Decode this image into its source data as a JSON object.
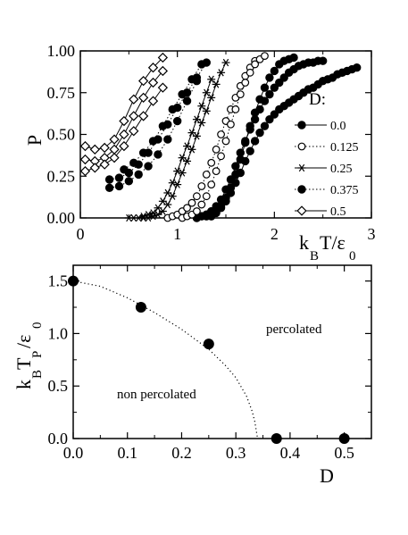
{
  "chart_data": [
    {
      "type": "line",
      "ylabel": "P",
      "xlabel": {
        "k": "k",
        "B": "B",
        "T": "T/ε",
        "zero": "0"
      },
      "xlim": [
        0,
        3
      ],
      "ylim": [
        0,
        1
      ],
      "x_ticks": [
        0,
        1,
        2,
        3
      ],
      "x_tick_labels": [
        "0",
        "1",
        "2",
        "3"
      ],
      "y_ticks": [
        0,
        0.25,
        0.5,
        0.75,
        1.0
      ],
      "y_tick_labels": [
        "0.00",
        "0.25",
        "0.50",
        "0.75",
        "1.00"
      ],
      "grid": false,
      "legend_title": "D:",
      "legend_position": "right",
      "series": [
        {
          "name": "0.0",
          "marker": "filled-circle",
          "line": "solid",
          "color": "#000000",
          "x": [
            1.3,
            1.35,
            1.4,
            1.45,
            1.5,
            1.55,
            1.6,
            1.65,
            1.7,
            1.75,
            1.8,
            1.85,
            1.9,
            1.95,
            2.0,
            2.05,
            2.1,
            2.15,
            2.2,
            2.25,
            2.3,
            2.35,
            2.4,
            2.45,
            2.5,
            2.55,
            2.6,
            2.65,
            2.7,
            2.75,
            2.8,
            2.85
          ],
          "y": [
            0.01,
            0.02,
            0.04,
            0.06,
            0.1,
            0.15,
            0.21,
            0.27,
            0.34,
            0.4,
            0.46,
            0.51,
            0.55,
            0.59,
            0.62,
            0.65,
            0.67,
            0.69,
            0.71,
            0.73,
            0.75,
            0.77,
            0.78,
            0.8,
            0.82,
            0.83,
            0.84,
            0.86,
            0.87,
            0.88,
            0.89,
            0.9
          ]
        },
        {
          "name": "0.0",
          "marker": "filled-circle",
          "line": "solid",
          "color": "#000000",
          "x": [
            1.2,
            1.25,
            1.3,
            1.35,
            1.4,
            1.45,
            1.5,
            1.55,
            1.6,
            1.65,
            1.7,
            1.75,
            1.8,
            1.85,
            1.9,
            1.95,
            2.0,
            2.05,
            2.1,
            2.15,
            2.2,
            2.25,
            2.3,
            2.35,
            2.4,
            2.45,
            2.5
          ],
          "y": [
            0.0,
            0.01,
            0.02,
            0.04,
            0.07,
            0.11,
            0.17,
            0.23,
            0.31,
            0.39,
            0.46,
            0.53,
            0.59,
            0.65,
            0.7,
            0.74,
            0.78,
            0.81,
            0.84,
            0.87,
            0.89,
            0.91,
            0.92,
            0.93,
            0.93,
            0.94,
            0.94
          ]
        },
        {
          "name": "0.0",
          "marker": "filled-circle",
          "line": "solid",
          "color": "#000000",
          "x": [
            1.35,
            1.4,
            1.45,
            1.5,
            1.55,
            1.6,
            1.65,
            1.7,
            1.75,
            1.8,
            1.85,
            1.9,
            1.95,
            2.0,
            2.05,
            2.1,
            2.15,
            2.2
          ],
          "y": [
            0.01,
            0.03,
            0.07,
            0.12,
            0.18,
            0.26,
            0.35,
            0.45,
            0.55,
            0.63,
            0.71,
            0.78,
            0.84,
            0.88,
            0.92,
            0.94,
            0.95,
            0.96
          ]
        },
        {
          "name": "0.125",
          "marker": "open-circle",
          "line": "dotted",
          "color": "#000000",
          "x": [
            0.9,
            0.95,
            1.0,
            1.05,
            1.1,
            1.15,
            1.2,
            1.25,
            1.3,
            1.35,
            1.4,
            1.45,
            1.5,
            1.55,
            1.6,
            1.65,
            1.7,
            1.75,
            1.8
          ],
          "y": [
            0.0,
            0.01,
            0.02,
            0.04,
            0.06,
            0.09,
            0.13,
            0.19,
            0.26,
            0.33,
            0.41,
            0.5,
            0.58,
            0.65,
            0.72,
            0.79,
            0.85,
            0.9,
            0.94
          ]
        },
        {
          "name": "0.125",
          "marker": "open-circle",
          "line": "dotted",
          "color": "#000000",
          "x": [
            1.05,
            1.1,
            1.15,
            1.2,
            1.25,
            1.3,
            1.35,
            1.4,
            1.45,
            1.5,
            1.55,
            1.6,
            1.65,
            1.7,
            1.75,
            1.8,
            1.85,
            1.9
          ],
          "y": [
            0.0,
            0.01,
            0.02,
            0.04,
            0.08,
            0.13,
            0.2,
            0.28,
            0.37,
            0.46,
            0.56,
            0.65,
            0.74,
            0.81,
            0.87,
            0.92,
            0.95,
            0.97
          ]
        },
        {
          "name": "0.25",
          "marker": "asterisk",
          "line": "solid",
          "color": "#000000",
          "x": [
            0.65,
            0.7,
            0.75,
            0.8,
            0.85,
            0.9,
            0.95,
            1.0,
            1.05,
            1.1,
            1.15,
            1.2,
            1.25,
            1.3,
            1.35,
            1.4,
            1.45,
            1.5
          ],
          "y": [
            0.0,
            0.0,
            0.01,
            0.02,
            0.04,
            0.08,
            0.13,
            0.2,
            0.27,
            0.34,
            0.41,
            0.49,
            0.57,
            0.64,
            0.72,
            0.8,
            0.87,
            0.93
          ]
        },
        {
          "name": "0.25",
          "marker": "asterisk",
          "line": "solid",
          "color": "#000000",
          "x": [
            0.5,
            0.55,
            0.6,
            0.65,
            0.7,
            0.75,
            0.8,
            0.85,
            0.9,
            0.95,
            1.0,
            1.05,
            1.1,
            1.15,
            1.2,
            1.25,
            1.3,
            1.35
          ],
          "y": [
            0.0,
            0.0,
            0.0,
            0.01,
            0.02,
            0.03,
            0.06,
            0.1,
            0.15,
            0.21,
            0.28,
            0.36,
            0.43,
            0.51,
            0.59,
            0.67,
            0.75,
            0.83
          ]
        },
        {
          "name": "0.375",
          "marker": "filled-circle",
          "line": "dotted",
          "color": "#000000",
          "x": [
            0.3,
            0.4,
            0.5,
            0.6,
            0.7,
            0.8,
            0.9,
            1.0,
            1.1,
            1.2
          ],
          "y": [
            0.18,
            0.19,
            0.22,
            0.26,
            0.31,
            0.38,
            0.47,
            0.58,
            0.7,
            0.82
          ]
        },
        {
          "name": "0.375",
          "marker": "filled-circle",
          "line": "dotted",
          "color": "#000000",
          "x": [
            0.3,
            0.4,
            0.5,
            0.6,
            0.7,
            0.8,
            0.9,
            1.0,
            1.1,
            1.2,
            1.3
          ],
          "y": [
            0.23,
            0.24,
            0.27,
            0.32,
            0.39,
            0.47,
            0.56,
            0.66,
            0.75,
            0.84,
            0.93
          ]
        },
        {
          "name": "0.375",
          "marker": "filled-circle",
          "line": "dotted",
          "color": "#000000",
          "x": [
            0.45,
            0.55,
            0.65,
            0.75,
            0.85,
            0.95,
            1.05,
            1.15,
            1.25
          ],
          "y": [
            0.29,
            0.33,
            0.39,
            0.46,
            0.55,
            0.65,
            0.74,
            0.83,
            0.92
          ]
        },
        {
          "name": "0.5",
          "marker": "open-diamond",
          "line": "solid",
          "color": "#000000",
          "x": [
            0.05,
            0.15,
            0.25,
            0.35,
            0.45,
            0.55,
            0.65,
            0.75,
            0.85
          ],
          "y": [
            0.43,
            0.41,
            0.42,
            0.47,
            0.58,
            0.71,
            0.82,
            0.9,
            0.96
          ]
        },
        {
          "name": "0.5",
          "marker": "open-diamond",
          "line": "solid",
          "color": "#000000",
          "x": [
            0.05,
            0.15,
            0.25,
            0.35,
            0.45,
            0.55,
            0.65,
            0.75,
            0.85
          ],
          "y": [
            0.35,
            0.34,
            0.36,
            0.41,
            0.5,
            0.61,
            0.72,
            0.81,
            0.88
          ]
        },
        {
          "name": "0.5",
          "marker": "open-diamond",
          "line": "solid",
          "color": "#000000",
          "x": [
            0.05,
            0.15,
            0.25,
            0.35,
            0.45,
            0.55,
            0.65,
            0.75,
            0.85
          ],
          "y": [
            0.28,
            0.3,
            0.32,
            0.36,
            0.43,
            0.52,
            0.61,
            0.7,
            0.78
          ]
        }
      ]
    },
    {
      "type": "scatter",
      "xlabel": "D",
      "ylabel": {
        "k": "k",
        "B": "B",
        "T": "T",
        "P": "P",
        "eps": "/ε",
        "zero": "0"
      },
      "xlim": [
        0,
        0.55
      ],
      "ylim": [
        0,
        1.65
      ],
      "x_ticks": [
        0,
        0.1,
        0.2,
        0.3,
        0.4,
        0.5
      ],
      "x_tick_labels": [
        "0.0",
        "0.1",
        "0.2",
        "0.3",
        "0.4",
        "0.5"
      ],
      "y_ticks": [
        0,
        0.5,
        1.0,
        1.5
      ],
      "y_tick_labels": [
        "0.0",
        "0.5",
        "1.0",
        "1.5"
      ],
      "grid": false,
      "points": {
        "x": [
          0.0,
          0.125,
          0.25,
          0.375,
          0.5
        ],
        "y": [
          1.5,
          1.25,
          0.9,
          0.0,
          0.0
        ]
      },
      "fit_line": {
        "style": "dotted",
        "x": [
          0.0,
          0.05,
          0.1,
          0.15,
          0.2,
          0.25,
          0.28,
          0.3,
          0.32,
          0.33,
          0.335,
          0.34
        ],
        "y": [
          1.5,
          1.45,
          1.34,
          1.2,
          1.04,
          0.85,
          0.7,
          0.58,
          0.4,
          0.26,
          0.16,
          0.0
        ]
      },
      "annotations": [
        "percolated",
        "non percolated"
      ]
    }
  ]
}
